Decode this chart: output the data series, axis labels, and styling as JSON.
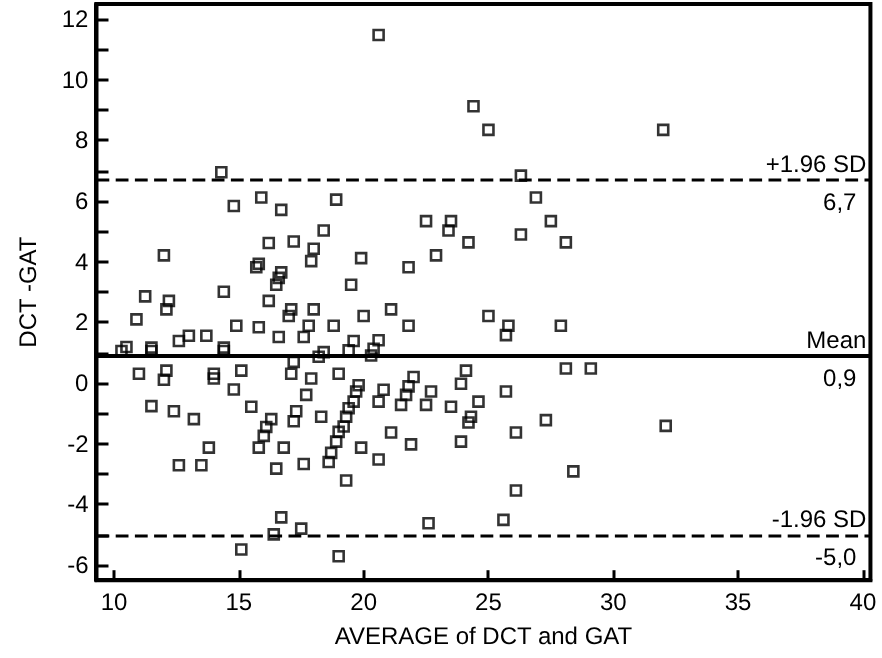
{
  "chart_data": {
    "type": "scatter",
    "xlabel": "AVERAGE of DCT and GAT",
    "ylabel": "DCT -GAT",
    "marker": "square",
    "grid": false,
    "xlim": [
      9.3,
      40.3
    ],
    "xticks": [
      10,
      15,
      20,
      25,
      30,
      35,
      40
    ],
    "ylim": [
      -6.5,
      12.5
    ],
    "yticks": [
      -6,
      {
        "value": -5,
        "label": null
      },
      -4,
      {
        "value": -3,
        "label": null
      },
      -2,
      {
        "value": -1,
        "label": null
      },
      0,
      {
        "value": 1,
        "label": null
      },
      2,
      {
        "value": 3,
        "label": null
      },
      4,
      {
        "value": 5,
        "label": null
      },
      6,
      {
        "value": 7,
        "label": null
      },
      8,
      {
        "value": 9,
        "label": null
      },
      10,
      {
        "value": 11,
        "label": null
      },
      12
    ],
    "ref_lines": [
      {
        "axis": "y",
        "value": 6.7,
        "label": "+1.96 SD",
        "line_style": "dashed",
        "color": "#000000"
      },
      {
        "axis": "y",
        "value": 0.9,
        "label": "Mean",
        "line_style": "solid",
        "color": "#000000"
      },
      {
        "axis": "y",
        "value": -5.0,
        "label": "-1.96 SD",
        "line_style": "dashed",
        "color": "#000000"
      }
    ],
    "annotations": [
      {
        "text": "6,7",
        "y": 6.7
      },
      {
        "text": "0,9",
        "y": 0.9
      },
      {
        "text": "-5,0",
        "y": -5.0
      }
    ],
    "series": [
      {
        "color": "#000000",
        "x": [
          14.3,
          14.8,
          15.9,
          16.7,
          18.9,
          16.2,
          17.2,
          18.4,
          18.0,
          12.0,
          15.8,
          15.7,
          16.7,
          16.6,
          16.5,
          17.9,
          19.5,
          19.9,
          11.25,
          14.4,
          20.6,
          24.4,
          25.0,
          26.3,
          26.9,
          22.5,
          23.5,
          23.4,
          24.2,
          26.3,
          27.5,
          28.1,
          22.9,
          21.8,
          32.0,
          12.2,
          12.1,
          10.9,
          16.2,
          17.1,
          17.0,
          18.0,
          14.9,
          15.8,
          17.8,
          18.8,
          13.0,
          13.7,
          16.6,
          17.6,
          12.6,
          10.5,
          10.3,
          11.5,
          11.5,
          14.4,
          14.4,
          18.4,
          18.2,
          19.6,
          19.4,
          17.2,
          11.0,
          12.1,
          12.0,
          14.0,
          14.0,
          15.1,
          17.1,
          17.9,
          19.0,
          14.8,
          17.7,
          11.5,
          12.4,
          15.5,
          13.2,
          17.3,
          17.2,
          16.3,
          18.3,
          19.7,
          19.6,
          19.4,
          19.3,
          19.2,
          19.0,
          18.9,
          18.7,
          18.6,
          16.0,
          16.1,
          15.8,
          16.8,
          13.8,
          12.6,
          13.5,
          16.5,
          17.6,
          19.3,
          16.7,
          16.4,
          17.5,
          15.1,
          19.0,
          20.0,
          21.1,
          21.8,
          25.0,
          25.8,
          25.7,
          27.9,
          20.6,
          20.4,
          20.3,
          28.1,
          29.1,
          24.1,
          23.9,
          22.0,
          21.8,
          21.7,
          21.5,
          22.7,
          22.5,
          23.5,
          24.6,
          24.3,
          24.2,
          25.7,
          20.8,
          20.6,
          19.8,
          21.1,
          19.9,
          21.9,
          20.6,
          23.9,
          26.1,
          27.3,
          28.4,
          26.1,
          22.6,
          25.6,
          32.1
        ],
        "values": [
          6.95,
          5.84,
          6.12,
          5.71,
          6.05,
          4.62,
          4.67,
          5.03,
          4.43,
          4.21,
          3.93,
          3.82,
          3.65,
          3.47,
          3.24,
          4.02,
          3.24,
          4.12,
          2.86,
          3.01,
          11.48,
          9.13,
          8.35,
          6.84,
          6.12,
          5.34,
          5.34,
          5.03,
          4.64,
          4.9,
          5.34,
          4.64,
          4.21,
          3.82,
          8.35,
          2.71,
          2.43,
          2.1,
          2.71,
          2.43,
          2.21,
          2.43,
          1.89,
          1.84,
          1.89,
          1.89,
          1.56,
          1.56,
          1.52,
          1.52,
          1.39,
          1.19,
          1.06,
          1.17,
          1.06,
          1.17,
          1.06,
          1.02,
          0.87,
          1.39,
          1.08,
          0.7,
          0.31,
          0.41,
          0.11,
          0.31,
          0.15,
          0.41,
          0.31,
          0.15,
          0.31,
          -0.21,
          -0.39,
          -0.76,
          -0.93,
          -0.78,
          -1.19,
          -0.93,
          -1.26,
          -1.19,
          -1.11,
          -0.28,
          -0.61,
          -0.83,
          -1.11,
          -1.43,
          -1.61,
          -1.93,
          -2.3,
          -2.6,
          -1.74,
          -1.45,
          -2.13,
          -2.13,
          -2.13,
          -2.71,
          -2.71,
          -2.82,
          -2.67,
          -3.21,
          -4.43,
          -4.99,
          -4.8,
          -5.49,
          -5.71,
          2.21,
          2.43,
          1.89,
          2.21,
          1.89,
          1.58,
          1.89,
          1.41,
          1.13,
          0.91,
          0.48,
          0.48,
          0.41,
          -0.02,
          0.2,
          -0.11,
          -0.39,
          -0.72,
          -0.28,
          -0.72,
          -0.78,
          -0.61,
          -1.11,
          -1.3,
          -0.28,
          -0.22,
          -0.61,
          -0.07,
          -1.63,
          -2.13,
          -2.02,
          -2.52,
          -1.93,
          -1.63,
          -1.22,
          -2.91,
          -3.54,
          -4.62,
          -4.51,
          -1.41
        ]
      }
    ]
  }
}
